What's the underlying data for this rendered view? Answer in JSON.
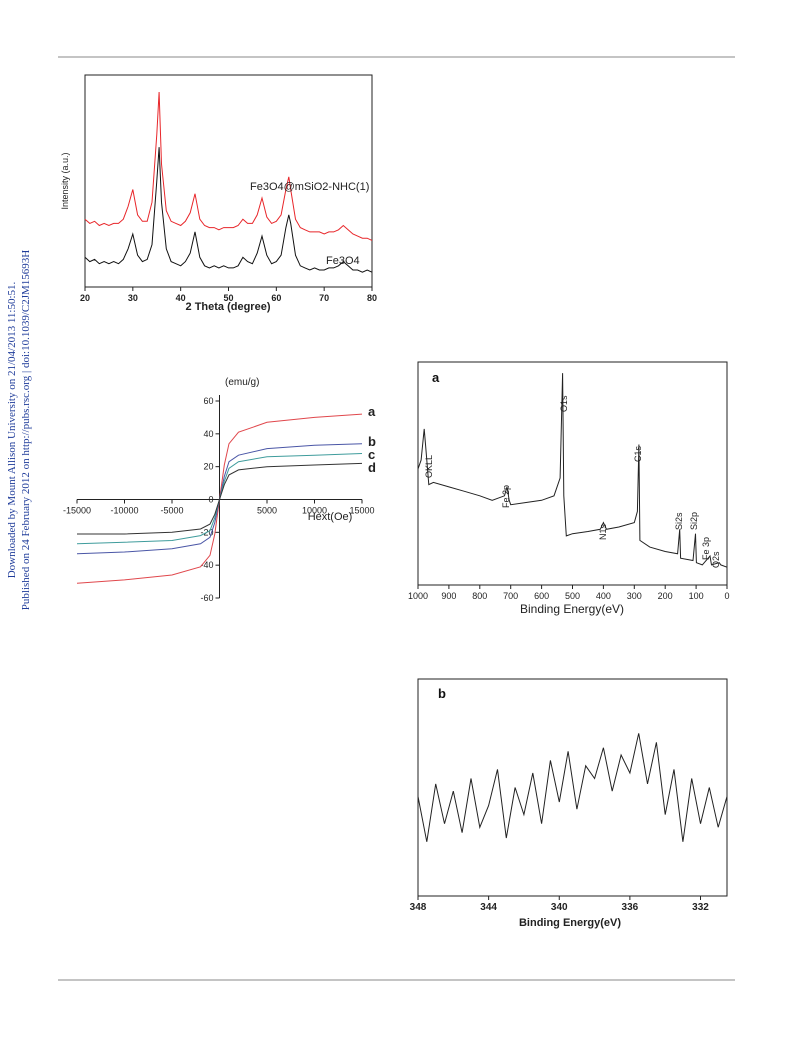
{
  "side_note": [
    "Downloaded by Mount Allison University on 21/04/2013 11:50:51.",
    "Published on 24 February 2012 on http://pubs.rsc.org | doi:10.1039/C2JM15693H"
  ],
  "chart_data": [
    {
      "type": "line",
      "x_label": "2 Theta (degree)",
      "y_label": "Intensity (a.u.)",
      "x": [
        20,
        21,
        22,
        23,
        24,
        25,
        26,
        27,
        28,
        29,
        30,
        31,
        32,
        33,
        34,
        35,
        35.5,
        36,
        37,
        38,
        39,
        40,
        41,
        42,
        43,
        44,
        45,
        46,
        47,
        48,
        49,
        50,
        51,
        52,
        53,
        54,
        55,
        56,
        57,
        58,
        59,
        60,
        61,
        62,
        62.6,
        63,
        64,
        65,
        66,
        67,
        68,
        69,
        70,
        71,
        72,
        73,
        74,
        75,
        76,
        77,
        78,
        79,
        80
      ],
      "series": [
        {
          "name": "Fe3O4@mSiO2-NHC(1)",
          "color": "#e8262a",
          "values": [
            32,
            30,
            31,
            29,
            30,
            29,
            30,
            30,
            32,
            38,
            46,
            34,
            31,
            31,
            40,
            72,
            92,
            58,
            36,
            31,
            30,
            29,
            31,
            35,
            44,
            32,
            29,
            28,
            28,
            27,
            28,
            28,
            28,
            29,
            32,
            30,
            30,
            34,
            42,
            33,
            30,
            31,
            34,
            46,
            52,
            46,
            32,
            28,
            27,
            26,
            26,
            26,
            25,
            26,
            26,
            27,
            29,
            27,
            25,
            24,
            23,
            23,
            22
          ]
        },
        {
          "name": "Fe3O4",
          "color": "#111111",
          "values": [
            14,
            12,
            13,
            11,
            12,
            11,
            12,
            11,
            13,
            18,
            25,
            15,
            12,
            13,
            20,
            50,
            66,
            40,
            18,
            12,
            11,
            10,
            12,
            16,
            26,
            14,
            10,
            9,
            10,
            9,
            10,
            9,
            9,
            10,
            14,
            12,
            11,
            16,
            24,
            15,
            11,
            12,
            15,
            28,
            34,
            30,
            15,
            10,
            9,
            8,
            9,
            8,
            8,
            9,
            9,
            10,
            12,
            10,
            8,
            8,
            7,
            8,
            7
          ]
        }
      ],
      "xlim": [
        20,
        80
      ],
      "xticks": [
        20,
        30,
        40,
        50,
        60,
        70,
        80
      ],
      "ylim": [
        0,
        100
      ]
    },
    {
      "type": "line",
      "x_label": "Hext(Oe)",
      "y_label": "(emu/g)",
      "x": [
        -15000,
        -10000,
        -5000,
        -2000,
        -1000,
        -500,
        0,
        500,
        1000,
        2000,
        5000,
        10000,
        15000
      ],
      "series": [
        {
          "name": "a",
          "color": "#e0474c",
          "values": [
            -51,
            -49,
            -46,
            -41,
            -34,
            -21,
            0,
            21,
            34,
            41,
            47,
            50,
            52
          ]
        },
        {
          "name": "b",
          "color": "#4a56a6",
          "values": [
            -33,
            -32,
            -30,
            -27,
            -23,
            -14,
            0,
            14,
            23,
            27,
            31,
            33,
            34
          ]
        },
        {
          "name": "c",
          "color": "#3f9c9c",
          "values": [
            -27,
            -26,
            -25,
            -22,
            -19,
            -11,
            0,
            11,
            19,
            23,
            26,
            27,
            28
          ]
        },
        {
          "name": "d",
          "color": "#333333",
          "values": [
            -21,
            -21,
            -20,
            -18,
            -15,
            -9,
            0,
            9,
            15,
            18,
            20,
            21,
            22
          ]
        }
      ],
      "xlim": [
        -15000,
        15000
      ],
      "xticks": [
        -15000,
        -10000,
        -5000,
        5000,
        10000,
        15000
      ],
      "ylim": [
        -60,
        60
      ],
      "yticks": [
        60,
        40,
        20,
        0,
        -20,
        -40,
        -60
      ]
    },
    {
      "type": "line",
      "panel": "a",
      "x_label": "Binding Energy(eV)",
      "x": [
        1000,
        990,
        980,
        975,
        965,
        950,
        900,
        850,
        800,
        760,
        720,
        712,
        705,
        700,
        650,
        600,
        560,
        540,
        532,
        528,
        520,
        500,
        450,
        410,
        400,
        390,
        350,
        300,
        290,
        285,
        282,
        250,
        200,
        160,
        153,
        150,
        110,
        102,
        99,
        80,
        55,
        50,
        25,
        20,
        0
      ],
      "values": [
        52,
        56,
        70,
        62,
        45,
        46,
        44,
        42,
        40,
        38,
        40,
        44,
        38,
        36,
        37,
        38,
        40,
        48,
        95,
        40,
        22,
        23,
        24,
        25,
        28,
        25,
        26,
        28,
        33,
        63,
        20,
        17,
        15,
        14,
        25,
        12,
        11,
        23,
        10,
        9,
        13,
        9,
        10,
        9,
        8
      ],
      "color": "#222222",
      "annotations": [
        "OKLL",
        "Fe 2p",
        "O1s",
        "N1s",
        "C1s",
        "Si2s",
        "Si2p",
        "Fe 3p",
        "O2s"
      ],
      "xlim": [
        1000,
        0
      ],
      "xticks": [
        1000,
        900,
        800,
        700,
        600,
        500,
        400,
        300,
        200,
        100,
        0
      ],
      "ylim": [
        0,
        100
      ]
    },
    {
      "type": "line",
      "panel": "b",
      "x_label": "Binding Energy(eV)",
      "x": [
        348,
        347.5,
        347,
        346.5,
        346,
        345.5,
        345,
        344.5,
        344,
        343.5,
        343,
        342.5,
        342,
        341.5,
        341,
        340.5,
        340,
        339.5,
        339,
        338.5,
        338,
        337.5,
        337,
        336.5,
        336,
        335.5,
        335,
        334.5,
        334,
        333.5,
        333,
        332.5,
        332,
        331.5,
        331,
        330.5
      ],
      "values": [
        45,
        20,
        52,
        30,
        48,
        25,
        55,
        28,
        40,
        60,
        22,
        50,
        35,
        58,
        30,
        65,
        42,
        70,
        38,
        62,
        55,
        72,
        48,
        68,
        58,
        80,
        52,
        75,
        35,
        60,
        20,
        55,
        30,
        50,
        28,
        45
      ],
      "color": "#222222",
      "xlim": [
        348,
        330.5
      ],
      "xticks": [
        348,
        344,
        340,
        336,
        332
      ],
      "ylim": [
        -10,
        110
      ]
    }
  ]
}
